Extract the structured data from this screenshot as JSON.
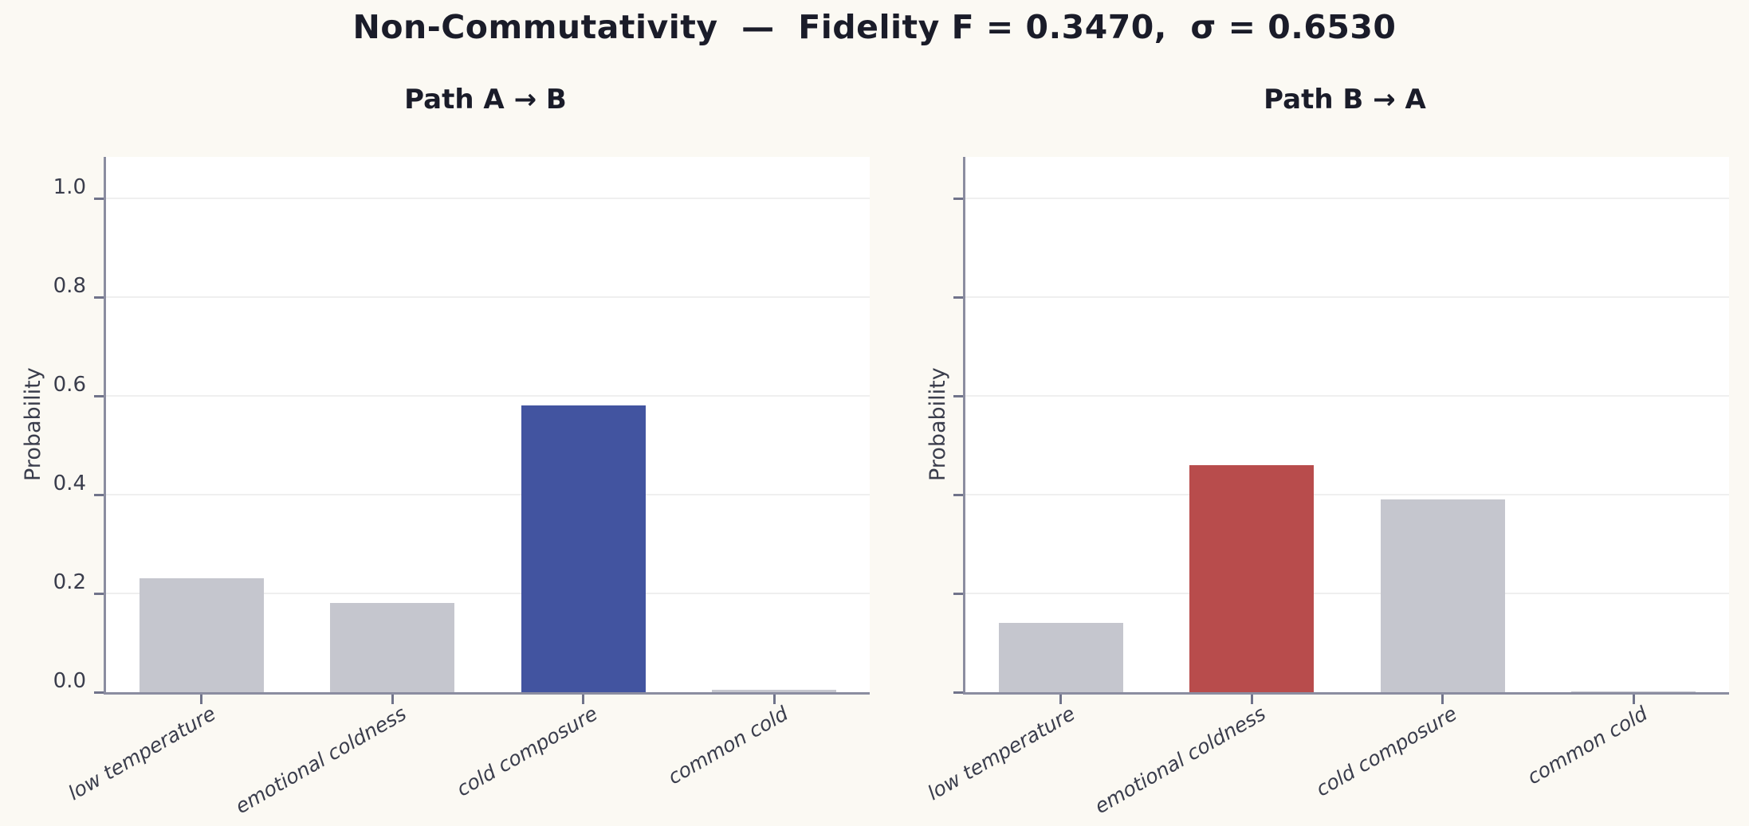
{
  "page_title": "Non-Commutativity  —  Fidelity F = 0.3470,  σ = 0.6530",
  "fidelity": "0.3470",
  "sigma": "0.6530",
  "colors": {
    "background": "#fbf9f3",
    "plot_background": "#ffffff",
    "grid": "#efefef",
    "spine": "#8b8da0",
    "tick": "#70738a",
    "tick_text": "#3a3d4c",
    "title_text": "#1a1c29",
    "bar_default": "#c5c6ce",
    "bar_highlight_blue": "#4254a0",
    "bar_highlight_red": "#b84c4c"
  },
  "chart_data": [
    {
      "type": "bar",
      "title": "Path A → B",
      "ylabel": "Probability",
      "categories": [
        "low temperature",
        "emotional coldness",
        "cold composure",
        "common cold"
      ],
      "values": [
        0.23,
        0.18,
        0.58,
        0.005
      ],
      "bar_colors": [
        "#c5c6ce",
        "#c5c6ce",
        "#4254a0",
        "#c5c6ce"
      ],
      "highlight_index": 2,
      "ylim": [
        0,
        1.08
      ],
      "yticks": [
        0.0,
        0.2,
        0.4,
        0.6,
        0.8,
        1.0
      ],
      "ytick_labels": [
        "0.0",
        "0.2",
        "0.4",
        "0.6",
        "0.8",
        "1.0"
      ],
      "show_ytick_labels": true,
      "grid": true,
      "legend_position": "none"
    },
    {
      "type": "bar",
      "title": "Path B → A",
      "ylabel": "Probability",
      "categories": [
        "low temperature",
        "emotional coldness",
        "cold composure",
        "common cold"
      ],
      "values": [
        0.14,
        0.46,
        0.39,
        0.002
      ],
      "bar_colors": [
        "#c5c6ce",
        "#b84c4c",
        "#c5c6ce",
        "#c5c6ce"
      ],
      "highlight_index": 1,
      "ylim": [
        0,
        1.08
      ],
      "yticks": [
        0.0,
        0.2,
        0.4,
        0.6,
        0.8,
        1.0
      ],
      "ytick_labels": [
        "0.0",
        "0.2",
        "0.4",
        "0.6",
        "0.8",
        "1.0"
      ],
      "show_ytick_labels": false,
      "grid": true,
      "legend_position": "none"
    }
  ]
}
